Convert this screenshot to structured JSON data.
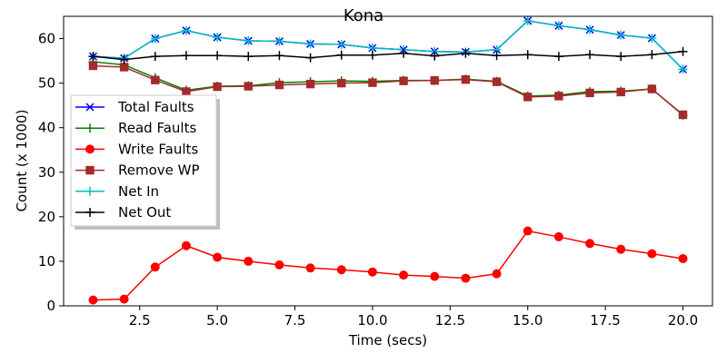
{
  "chart_data": {
    "type": "line",
    "title": "Kona",
    "xlabel": "Time (secs)",
    "ylabel": "Count (x 1000)",
    "xlim": [
      0.05,
      20.95
    ],
    "ylim": [
      0,
      65
    ],
    "xticks": [
      2.5,
      5.0,
      7.5,
      10.0,
      12.5,
      15.0,
      17.5,
      20.0
    ],
    "xtick_labels": [
      "2.5",
      "5.0",
      "7.5",
      "10.0",
      "12.5",
      "15.0",
      "17.5",
      "20.0"
    ],
    "yticks": [
      0,
      10,
      20,
      30,
      40,
      50,
      60
    ],
    "ytick_labels": [
      "0",
      "10",
      "20",
      "30",
      "40",
      "50",
      "60"
    ],
    "grid": false,
    "legend_position": "center-left",
    "x": [
      1,
      2,
      3,
      4,
      5,
      6,
      7,
      8,
      9,
      10,
      11,
      12,
      13,
      14,
      15,
      16,
      17,
      18,
      19,
      20
    ],
    "series": [
      {
        "name": "Total Faults",
        "color": "#0000ff",
        "marker": "x",
        "values": [
          56.0,
          55.6,
          60.0,
          61.8,
          60.3,
          59.5,
          59.4,
          58.8,
          58.7,
          57.9,
          57.5,
          57.1,
          57.0,
          57.5,
          64.0,
          62.9,
          62.0,
          60.8,
          60.1,
          53.1
        ]
      },
      {
        "name": "Read Faults",
        "color": "#008000",
        "marker": "plus",
        "values": [
          54.8,
          54.1,
          51.2,
          48.4,
          49.3,
          49.4,
          50.1,
          50.3,
          50.5,
          50.4,
          50.6,
          50.6,
          50.9,
          50.4,
          47.1,
          47.3,
          48.1,
          48.2,
          48.7,
          42.8
        ]
      },
      {
        "name": "Write Faults",
        "color": "#ff0000",
        "marker": "circle",
        "values": [
          1.3,
          1.5,
          8.7,
          13.5,
          10.9,
          10.0,
          9.2,
          8.5,
          8.1,
          7.6,
          6.9,
          6.6,
          6.2,
          7.2,
          16.8,
          15.5,
          14.0,
          12.7,
          11.7,
          10.6
        ]
      },
      {
        "name": "Remove WP",
        "color": "#a52a2a",
        "marker": "square",
        "values": [
          53.9,
          53.6,
          50.7,
          48.1,
          49.2,
          49.3,
          49.6,
          49.8,
          50.0,
          50.1,
          50.5,
          50.6,
          50.8,
          50.3,
          46.9,
          47.1,
          47.8,
          48.0,
          48.7,
          42.9
        ]
      },
      {
        "name": "Net In",
        "color": "#00bfbf",
        "marker": "plus",
        "values": [
          56.0,
          55.6,
          60.0,
          61.8,
          60.3,
          59.5,
          59.4,
          58.8,
          58.7,
          57.9,
          57.5,
          57.1,
          57.0,
          57.5,
          64.0,
          62.9,
          62.0,
          60.8,
          60.1,
          53.1
        ]
      },
      {
        "name": "Net Out",
        "color": "#000000",
        "marker": "plus",
        "values": [
          56.0,
          55.3,
          56.0,
          56.2,
          56.2,
          56.0,
          56.2,
          55.7,
          56.3,
          56.3,
          56.7,
          56.1,
          56.7,
          56.2,
          56.4,
          56.0,
          56.4,
          56.0,
          56.4,
          57.1
        ]
      }
    ]
  }
}
